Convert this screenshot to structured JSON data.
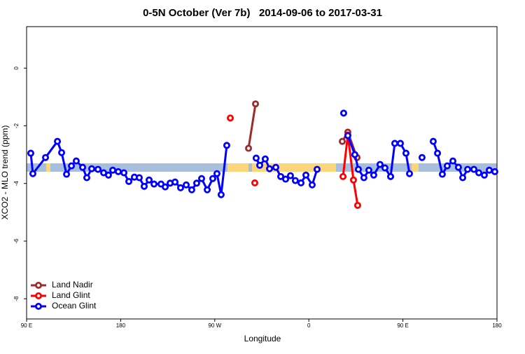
{
  "chart_data": {
    "type": "line",
    "title": "0-5N October (Ver 7b)   2014-09-06 to 2017-03-31",
    "x_label": "Longitude",
    "y_label": "XCO2 - MLO trend (ppm)",
    "xlim": [
      90,
      540
    ],
    "ylim": [
      -8.7,
      1.44
    ],
    "xticks": [
      {
        "value": 90,
        "label": "90 E"
      },
      180,
      {
        "value": 270,
        "label": "90 W"
      },
      {
        "value": 360,
        "label": "0"
      },
      {
        "value": 450,
        "label": "90 E"
      },
      {
        "value": 540,
        "label": "180"
      }
    ],
    "yticks": [
      0,
      -2,
      -4,
      -6,
      -8
    ],
    "legend": "bottom-left",
    "series": [
      {
        "name": "Land Nadir",
        "color": "#a0292c",
        "x": [
          302.3,
          309.0,
          null,
          392.0,
          397.3,
          406.1
        ],
        "values": [
          -2.78,
          -1.24,
          null,
          -2.54,
          -2.22,
          -3.1
        ]
      },
      {
        "name": "Land Glint",
        "color": "#ff0000",
        "x": [
          284.9,
          null,
          308.3,
          null,
          392.7,
          397.3,
          402.7,
          406.7
        ],
        "values": [
          -1.73,
          null,
          -3.98,
          null,
          -3.76,
          -2.32,
          -3.88,
          -4.76
        ]
      },
      {
        "name": "Ocean Glint",
        "color": "#0000ff",
        "x": [
          94.0,
          96.0,
          108.1,
          119.5,
          123.5,
          128.2,
          132.9,
          137.5,
          143.6,
          147.6,
          152.3,
          158.3,
          163.7,
          168.3,
          172.4,
          177.7,
          183.1,
          187.8,
          193.1,
          197.8,
          202.5,
          207.2,
          211.9,
          218.6,
          222.6,
          227.3,
          232.0,
          237.3,
          242.7,
          248.0,
          252.7,
          257.4,
          262.8,
          268.1,
          272.1,
          276.1,
          281.5,
          null,
          309.6,
          313.0,
          318.3,
          322.4,
          328.4,
          333.1,
          337.8,
          342.4,
          347.1,
          352.5,
          357.2,
          363.2,
          367.9,
          null,
          393.3,
          null,
          397.3,
          404.0,
          407.4,
          412.7,
          417.4,
          422.1,
          428.1,
          432.8,
          438.2,
          442.2,
          447.6,
          452.9,
          456.3,
          null,
          468.3,
          null,
          479.0,
          483.1,
          487.7,
          492.4,
          497.8,
          503.1,
          507.2,
          511.9,
          517.9,
          522.6,
          527.9,
          532.6,
          537.9
        ],
        "values": [
          -2.95,
          -3.66,
          -3.1,
          -2.54,
          -2.93,
          -3.68,
          -3.39,
          -3.22,
          -3.44,
          -3.8,
          -3.49,
          -3.51,
          -3.63,
          -3.71,
          -3.54,
          -3.59,
          -3.63,
          -3.93,
          -3.78,
          -3.8,
          -4.1,
          -3.88,
          -4.02,
          -4.02,
          -4.12,
          -3.99,
          -3.95,
          -4.15,
          -4.05,
          -4.22,
          -3.99,
          -3.83,
          -4.22,
          -3.83,
          -3.66,
          -4.39,
          -2.68,
          null,
          -3.12,
          -3.37,
          -3.15,
          -3.49,
          -3.44,
          -3.76,
          -3.85,
          -3.73,
          -3.9,
          -3.98,
          -3.71,
          -4.05,
          -3.51,
          null,
          -1.56,
          null,
          -2.34,
          -3.0,
          -3.51,
          -3.8,
          -3.54,
          -3.71,
          -3.34,
          -3.46,
          -3.76,
          -2.61,
          -2.61,
          -2.95,
          -3.66,
          null,
          -3.1,
          null,
          -2.54,
          -2.95,
          -3.68,
          -3.39,
          -3.22,
          -3.44,
          -3.8,
          -3.51,
          -3.51,
          -3.63,
          -3.71,
          -3.54,
          -3.59
        ]
      }
    ]
  }
}
